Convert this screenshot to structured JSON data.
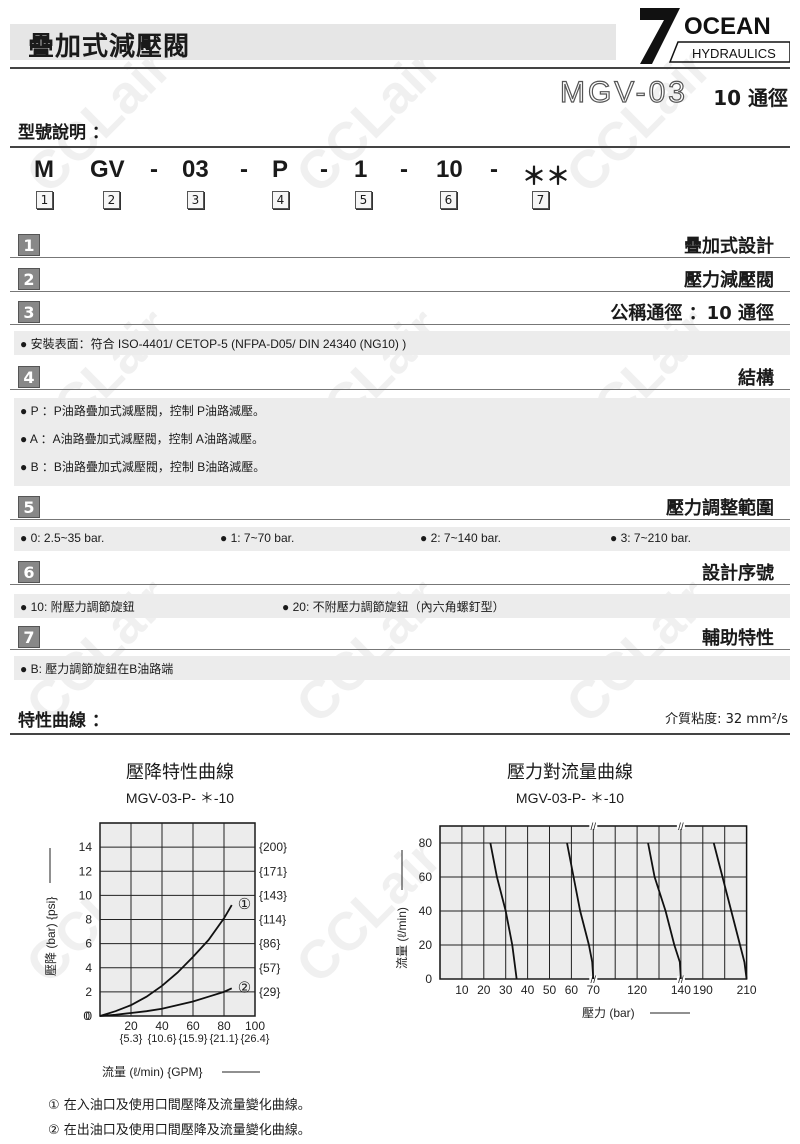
{
  "header": {
    "title": "疊加式減壓閥",
    "logo_top": "OCEAN",
    "logo_bottom": "HYDRAULICS",
    "model": "MGV-03",
    "model_size": "10 通徑"
  },
  "watermark": "CCLair",
  "model_code": {
    "heading": "型號說明 ：",
    "parts": [
      "M",
      "GV",
      "-",
      "03",
      "-",
      "P",
      "-",
      "1",
      "-",
      "10",
      "-",
      "＊＊"
    ],
    "boxes": [
      "1",
      "2",
      "3",
      "4",
      "5",
      "6",
      "7"
    ]
  },
  "sections": [
    {
      "num": "1",
      "title": "疊加式設計",
      "items": []
    },
    {
      "num": "2",
      "title": "壓力減壓閥",
      "items": []
    },
    {
      "num": "3",
      "title": "公稱通徑 ：10 通徑",
      "items": [
        "安裝表面：符合 ISO-4401/ CETOP-5 (NFPA-D05/ DIN 24340 (NG10) )"
      ]
    },
    {
      "num": "4",
      "title": "結構",
      "items": [
        "P ：P油路疊加式減壓閥，控制 P油路減壓。",
        "A ：A油路疊加式減壓閥，控制 A油路減壓。",
        "B ：B油路疊加式減壓閥，控制 B油路減壓。"
      ]
    },
    {
      "num": "5",
      "title": "壓力調整範圍",
      "items": [
        "0: 2.5~35 bar.",
        "1: 7~70 bar.",
        "2: 7~140 bar.",
        "3: 7~210 bar."
      ]
    },
    {
      "num": "6",
      "title": "設計序號",
      "items": [
        "10: 附壓力調節旋鈕",
        "20: 不附壓力調節旋鈕（內六角螺釘型）"
      ]
    },
    {
      "num": "7",
      "title": "輔助特性",
      "items": [
        "B: 壓力調節旋鈕在B油路端"
      ]
    }
  ],
  "characteristics": {
    "heading": "特性曲線 ：",
    "viscosity": "介質粘度: 32 mm²/s"
  },
  "chart_data": [
    {
      "type": "line",
      "title": "壓降特性曲線",
      "subtitle": "MGV-03-P- ＊-10",
      "xlabel": "流量 (ℓ/min) {GPM}",
      "ylabel": "壓降 (bar) {psi}",
      "xlim": [
        0,
        100
      ],
      "ylim": [
        0,
        16
      ],
      "grid": true,
      "xticks": [
        0,
        20,
        40,
        60,
        80,
        100
      ],
      "xtick_labels": [
        "",
        "20",
        "40",
        "60",
        "80",
        "100"
      ],
      "xtick_labels2": [
        "{5.3}",
        "{10.6}",
        "{15.9}",
        "{21.1}",
        "{26.4}"
      ],
      "yticks": [
        0,
        2,
        4,
        6,
        8,
        10,
        12,
        14
      ],
      "ytick_labels2": [
        "{29}",
        "{57}",
        "{86}",
        "{114}",
        "{143}",
        "{171}",
        "{200}"
      ],
      "series": [
        {
          "name": "①",
          "x": [
            0,
            10,
            20,
            30,
            40,
            50,
            60,
            70,
            80,
            85
          ],
          "y": [
            0,
            0.4,
            0.9,
            1.6,
            2.5,
            3.6,
            4.9,
            6.3,
            8.1,
            9.2
          ]
        },
        {
          "name": "②",
          "x": [
            0,
            10,
            20,
            30,
            40,
            50,
            60,
            70,
            80,
            85
          ],
          "y": [
            0,
            0.1,
            0.25,
            0.4,
            0.6,
            0.9,
            1.2,
            1.6,
            2.0,
            2.3
          ]
        }
      ]
    },
    {
      "type": "line",
      "title": "壓力對流量曲線",
      "subtitle": "MGV-03-P- ＊-10",
      "xlabel": "壓力 (bar)",
      "ylabel": "流量 (ℓ/min)",
      "ylim": [
        0,
        90
      ],
      "grid": true,
      "x_axis_breaks": [
        70,
        140
      ],
      "xtick_labels": [
        "10",
        "20",
        "30",
        "40",
        "50",
        "60",
        "70",
        "120",
        "140",
        "190",
        "210"
      ],
      "xtick_values": [
        10,
        20,
        30,
        40,
        50,
        60,
        70,
        120,
        140,
        190,
        210
      ],
      "yticks": [
        0,
        20,
        40,
        60,
        80
      ],
      "series": [
        {
          "x": [
            35,
            34,
            33,
            30,
            26,
            23
          ],
          "y": [
            0,
            10,
            20,
            40,
            60,
            80
          ]
        },
        {
          "x": [
            70,
            69.5,
            68,
            64,
            61,
            58
          ],
          "y": [
            0,
            10,
            20,
            40,
            60,
            80
          ]
        },
        {
          "x": [
            140,
            139.5,
            137,
            133,
            128,
            125
          ],
          "y": [
            0,
            10,
            20,
            40,
            60,
            80
          ]
        },
        {
          "x": [
            210,
            209,
            207,
            203,
            199,
            195
          ],
          "y": [
            0,
            10,
            20,
            40,
            60,
            80
          ]
        }
      ]
    }
  ],
  "notes": [
    "①  在入油口及使用口間壓降及流量變化曲線。",
    "②  在出油口及使用口間壓降及流量變化曲線。"
  ]
}
